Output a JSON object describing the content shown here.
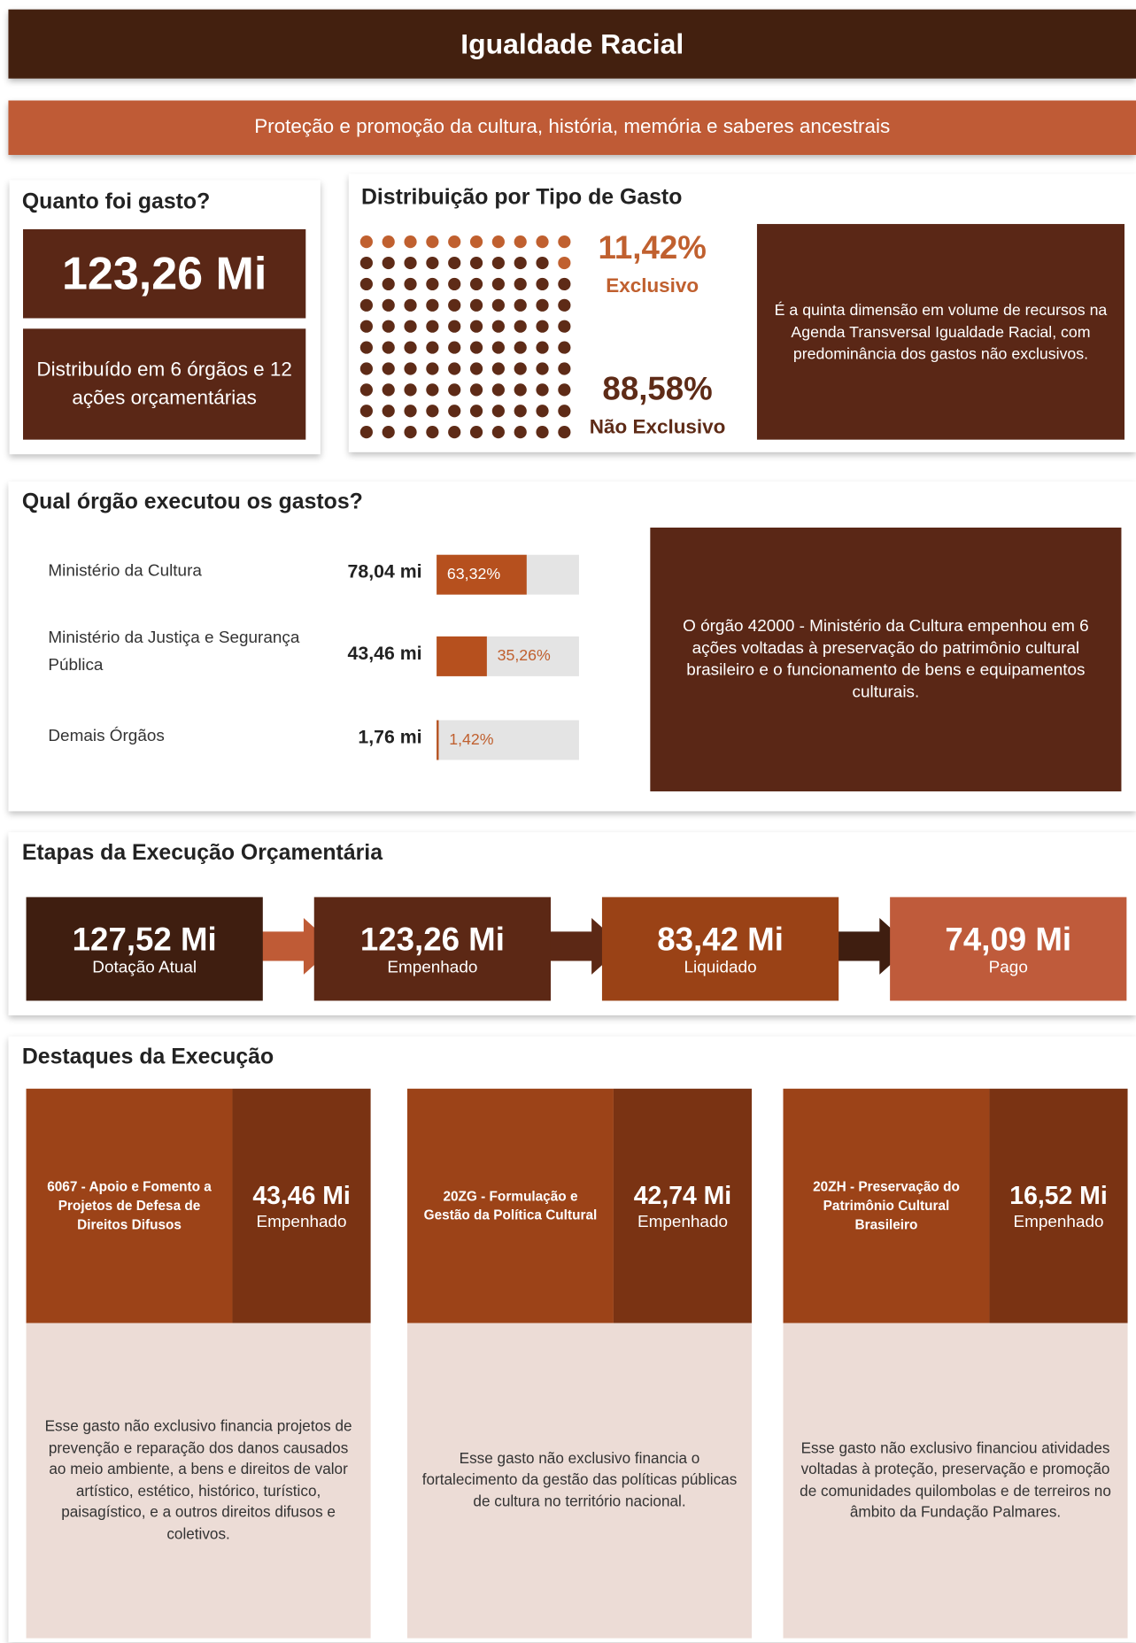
{
  "header": {
    "title": "Igualdade Racial",
    "subtitle": "Proteção e promoção da cultura, história, memória e saberes ancestrais"
  },
  "spending": {
    "title": "Quanto foi gasto?",
    "total": "123,26 Mi",
    "description": "Distribuído em 6 órgãos e 12 ações orçamentárias"
  },
  "distribution": {
    "title": "Distribuição por Tipo de Gasto",
    "exclusive": {
      "value": 11.42,
      "label": "11,42%",
      "name": "Exclusivo",
      "color": "#c0602f"
    },
    "non_exclusive": {
      "value": 88.58,
      "label": "88,58%",
      "name": "Não Exclusivo",
      "color": "#5e2b17"
    },
    "note": "É a quinta dimensão em volume de recursos na Agenda Transversal Igualdade Racial, com predominância dos gastos não exclusivos."
  },
  "organs": {
    "title": "Qual órgão executou os gastos?",
    "rows": [
      {
        "name": "Ministério da Cultura",
        "amount": "78,04 mi",
        "share": {
          "value": 63.32,
          "label": "63,32%"
        }
      },
      {
        "name": "Ministério da Justiça e Segurança Pública",
        "amount": "43,46 mi",
        "share": {
          "value": 35.26,
          "label": "35,26%"
        }
      },
      {
        "name": "Demais Órgãos",
        "amount": "1,76 mi",
        "share": {
          "value": 1.42,
          "label": "1,42%"
        }
      }
    ],
    "note": "O órgão 42000 - Ministério da Cultura empenhou em 6 ações voltadas à preservação do patrimônio cultural brasileiro e o funcionamento de bens e equipamentos culturais."
  },
  "stages": {
    "title": "Etapas da Execução Orçamentária",
    "items": [
      {
        "value": "127,52 Mi",
        "label": "Dotação Atual"
      },
      {
        "value": "123,26 Mi",
        "label": "Empenhado"
      },
      {
        "value": "83,42 Mi",
        "label": "Liquidado"
      },
      {
        "value": "74,09 Mi",
        "label": "Pago"
      }
    ]
  },
  "highlights": {
    "title": "Destaques da Execução",
    "items": [
      {
        "action": "6067 - Apoio e Fomento a Projetos de Defesa de Direitos Difusos",
        "value": "43,46 Mi",
        "label": "Empenhado",
        "description": "Esse gasto não exclusivo financia projetos de prevenção e reparação dos danos causados ao meio ambiente, a bens e direitos de valor artístico, estético, histórico, turístico, paisagístico, e a outros direitos difusos e coletivos."
      },
      {
        "action": "20ZG - Formulação e Gestão da Política Cultural",
        "value": "42,74 Mi",
        "label": "Empenhado",
        "description": "Esse gasto não exclusivo financia o fortalecimento da gestão das políticas públicas de cultura no território nacional."
      },
      {
        "action": "20ZH - Preservação do Patrimônio Cultural Brasileiro",
        "value": "16,52 Mi",
        "label": "Empenhado",
        "description": "Esse gasto não exclusivo financiou atividades voltadas à proteção, preservação e promoção de comunidades quilombolas e de terreiros no âmbito da Fundação Palmares."
      }
    ]
  }
}
